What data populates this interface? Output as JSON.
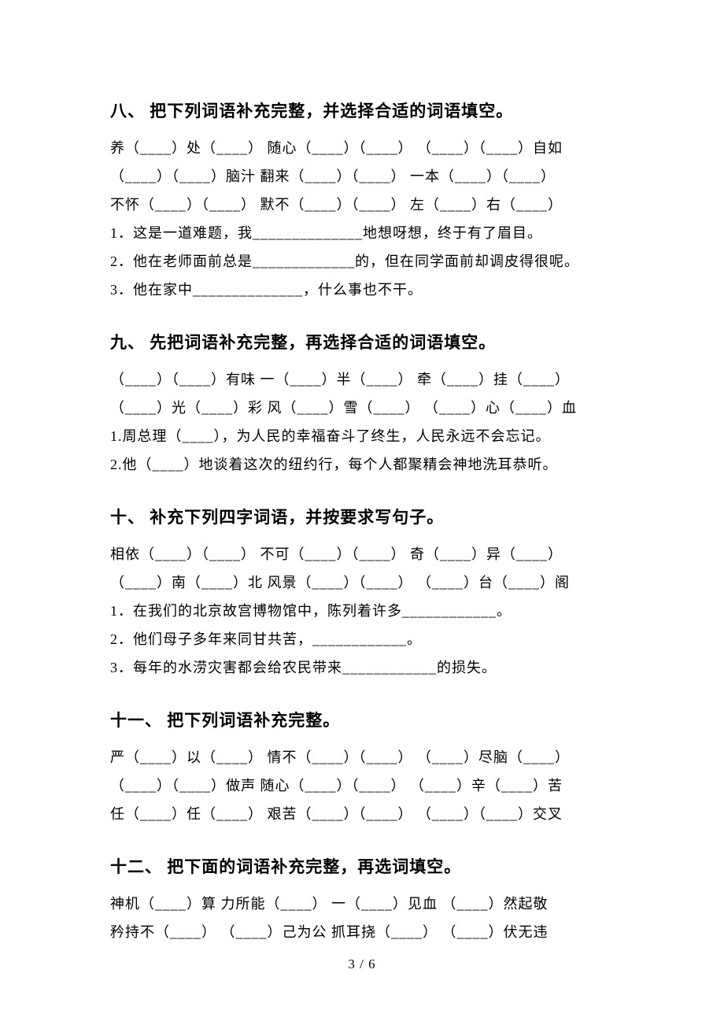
{
  "sections": [
    {
      "title": "八、 把下列词语补充完整，并选择合适的词语填空。",
      "lines": [
        "养（____）处（____）   随心（____）（____）   （____）（____）自如",
        "（____）（____）脑汁   翻来（____）（____）    一本（____）（____）",
        "不怀（____）（____）   默不（____）（____）    左（____）右（____）",
        "1．这是一道难题，我______________地想呀想，终于有了眉目。",
        "2．他在老师面前总是_____________的，但在同学面前却调皮得很呢。",
        "3．他在家中______________，什么事也不干。"
      ]
    },
    {
      "title": "九、 先把词语补充完整，再选择合适的词语填空。",
      "lines": [
        "（____）（____）有味   一（____）半（____）   牵（____）挂（____）",
        "（____）光（____）彩   风（____）雪（____）   （____）心（____）血",
        "1.周总理（____），为人民的幸福奋斗了终生，人民永远不会忘记。",
        "2.他（____）地谈着这次的纽约行，每个人都聚精会神地洗耳恭听。"
      ]
    },
    {
      "title": "十、 补充下列四字词语，并按要求写句子。",
      "lines": [
        "相依（____）（____）   不可（____）（____）  奇（____）异（____）",
        "（____）南（____）北   风景（____）（____） （____）台（____）阁",
        "1．在我们的北京故宫博物馆中，陈列着许多____________。",
        "2．他们母子多年来同甘共苦，____________。",
        "3．每年的水涝灾害都会给农民带来____________的损失。"
      ]
    },
    {
      "title": "十一、 把下列词语补充完整。",
      "lines": [
        "严（____）以（____）    情不（____）（____）   （____）尽脑（____）",
        "（____）（____）做声    随心（____）（____）   （____）辛（____）苦",
        "任（____）任（____）    艰苦（____）（____）   （____）（____）交叉"
      ]
    },
    {
      "title": "十二、 把下面的词语补充完整，再选词填空。",
      "lines": [
        "神机（____）算   力所能（____）    一（____）见血    （____）然起敬",
        "矜持不（____）  （____）己为公    抓耳挠（____）    （____）伏无违"
      ]
    }
  ],
  "footer": "3 / 6"
}
